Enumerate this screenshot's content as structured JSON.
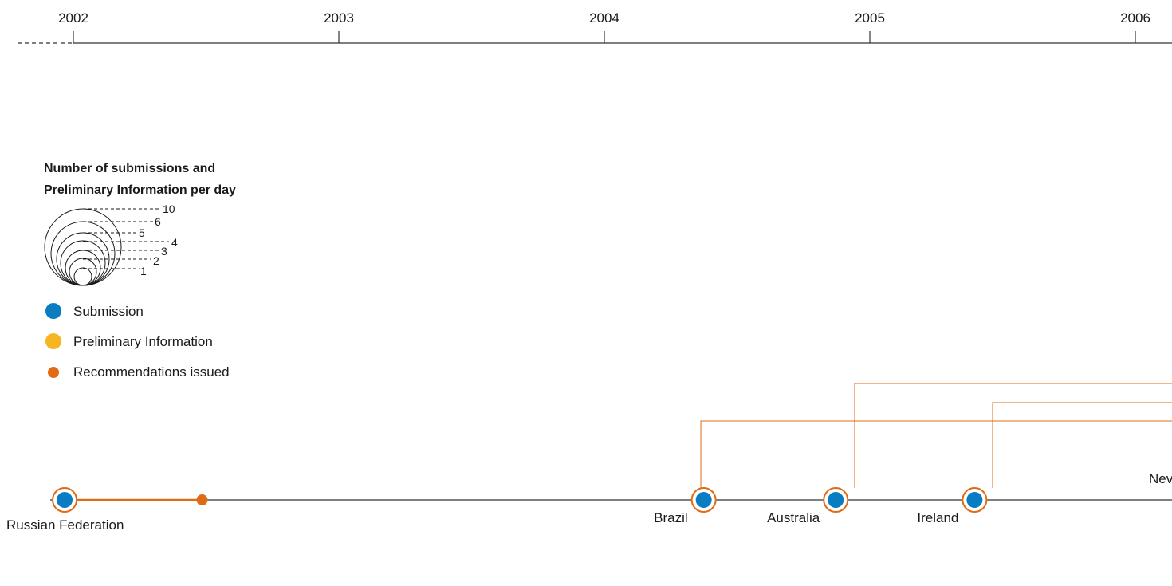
{
  "chart_data": {
    "type": "scatter",
    "x_axis": {
      "type": "date",
      "ticks": [
        "2002",
        "2003",
        "2004",
        "2005",
        "2006"
      ],
      "range": [
        "2001-10-01",
        "2006-03-15"
      ]
    },
    "legend": {
      "title_line1": "Number of submissions and",
      "title_line2": "Preliminary Information per day",
      "size_scale": [
        "1",
        "2",
        "3",
        "4",
        "5",
        "6",
        "10"
      ],
      "items": [
        {
          "label": "Submission",
          "color": "#0a7cc1"
        },
        {
          "label": "Preliminary Information",
          "color": "#f7b521"
        },
        {
          "label": "Recommendations issued",
          "color": "#e06b14"
        }
      ]
    },
    "events": [
      {
        "country": "Russian Federation",
        "type": "Submission",
        "date": "2001-12-20",
        "recommendation_date": "2002-06-27",
        "size": 1
      },
      {
        "country": "Brazil",
        "type": "Submission",
        "date": "2004-05-17",
        "size": 1
      },
      {
        "country": "Australia",
        "type": "Submission",
        "date": "2004-11-15",
        "size": 1
      },
      {
        "country": "Ireland",
        "type": "Submission",
        "date": "2005-05-25",
        "size": 1
      },
      {
        "country": "Nev",
        "type": "Submission",
        "date": "",
        "size": 1
      }
    ],
    "colors": {
      "submission": "#0a7cc1",
      "preliminary": "#f7b521",
      "recommendation": "#e06b14",
      "axis": "#333333"
    }
  }
}
